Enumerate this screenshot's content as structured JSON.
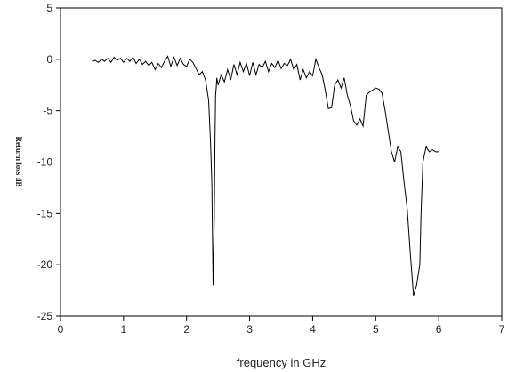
{
  "chart_data": {
    "type": "line",
    "title": "",
    "xlabel": "frequency in GHz",
    "ylabel": "Return loss dB",
    "xlim": [
      0,
      7
    ],
    "ylim": [
      -25,
      5
    ],
    "xticks": [
      0,
      1,
      2,
      3,
      4,
      5,
      6,
      7
    ],
    "yticks": [
      5,
      0,
      -5,
      -10,
      -15,
      -20,
      -25
    ],
    "grid": false,
    "legend": "none",
    "line_color": "#000000",
    "series": [
      {
        "x": [
          0.5,
          0.55,
          0.6,
          0.65,
          0.7,
          0.75,
          0.8,
          0.85,
          0.9,
          0.95,
          1.0,
          1.05,
          1.1,
          1.15,
          1.2,
          1.25,
          1.3,
          1.35,
          1.4,
          1.45,
          1.5,
          1.55,
          1.6,
          1.65,
          1.7,
          1.75,
          1.8,
          1.85,
          1.9,
          1.95,
          2.0,
          2.05,
          2.1,
          2.15,
          2.2,
          2.25,
          2.3,
          2.35,
          2.38,
          2.4,
          2.42,
          2.44,
          2.45,
          2.46,
          2.47,
          2.48,
          2.5,
          2.55,
          2.6,
          2.65,
          2.7,
          2.75,
          2.8,
          2.85,
          2.9,
          2.95,
          3.0,
          3.05,
          3.1,
          3.15,
          3.2,
          3.25,
          3.3,
          3.35,
          3.4,
          3.45,
          3.5,
          3.55,
          3.6,
          3.65,
          3.7,
          3.75,
          3.8,
          3.85,
          3.9,
          3.95,
          4.0,
          4.05,
          4.1,
          4.15,
          4.2,
          4.25,
          4.3,
          4.35,
          4.4,
          4.45,
          4.5,
          4.55,
          4.6,
          4.65,
          4.7,
          4.75,
          4.8,
          4.85,
          4.9,
          4.95,
          5.0,
          5.05,
          5.1,
          5.15,
          5.2,
          5.25,
          5.3,
          5.35,
          5.4,
          5.45,
          5.5,
          5.55,
          5.6,
          5.65,
          5.7,
          5.72,
          5.75,
          5.8,
          5.85,
          5.9,
          5.95,
          6.0
        ],
        "values": [
          -0.2,
          -0.1,
          -0.3,
          0.0,
          -0.2,
          0.1,
          -0.3,
          0.2,
          -0.1,
          0.1,
          -0.3,
          0.1,
          -0.2,
          0.2,
          -0.4,
          0.0,
          -0.5,
          -0.2,
          -0.6,
          -0.3,
          -1.0,
          -0.4,
          -0.8,
          -0.2,
          0.3,
          -0.7,
          0.2,
          -0.6,
          0.1,
          -0.5,
          -0.7,
          0.0,
          -0.3,
          -0.9,
          -1.5,
          -1.2,
          -2.0,
          -4.0,
          -8.0,
          -12.0,
          -22.0,
          -15.0,
          -8.0,
          -3.5,
          -2.8,
          -1.8,
          -2.5,
          -1.5,
          -2.2,
          -1.0,
          -2.0,
          -0.5,
          -1.5,
          -0.3,
          -1.2,
          -0.4,
          -1.6,
          -0.3,
          -1.5,
          -0.5,
          -0.8,
          -0.2,
          -1.2,
          -0.4,
          -0.8,
          -0.1,
          -0.9,
          -0.4,
          -0.6,
          0.0,
          -1.0,
          -0.5,
          -2.0,
          -1.0,
          -1.8,
          -1.2,
          -1.6,
          0.0,
          -0.8,
          -1.5,
          -3.0,
          -4.8,
          -4.7,
          -2.5,
          -2.0,
          -2.8,
          -1.8,
          -3.5,
          -4.5,
          -6.0,
          -6.4,
          -5.8,
          -6.5,
          -3.5,
          -3.2,
          -3.0,
          -2.8,
          -2.9,
          -3.3,
          -5.0,
          -7.0,
          -9.0,
          -10.0,
          -8.5,
          -9.0,
          -12.0,
          -14.5,
          -19.0,
          -23.0,
          -22.0,
          -20.0,
          -15.0,
          -10.0,
          -8.5,
          -9.0,
          -8.8,
          -9.0,
          -9.0
        ]
      }
    ]
  }
}
